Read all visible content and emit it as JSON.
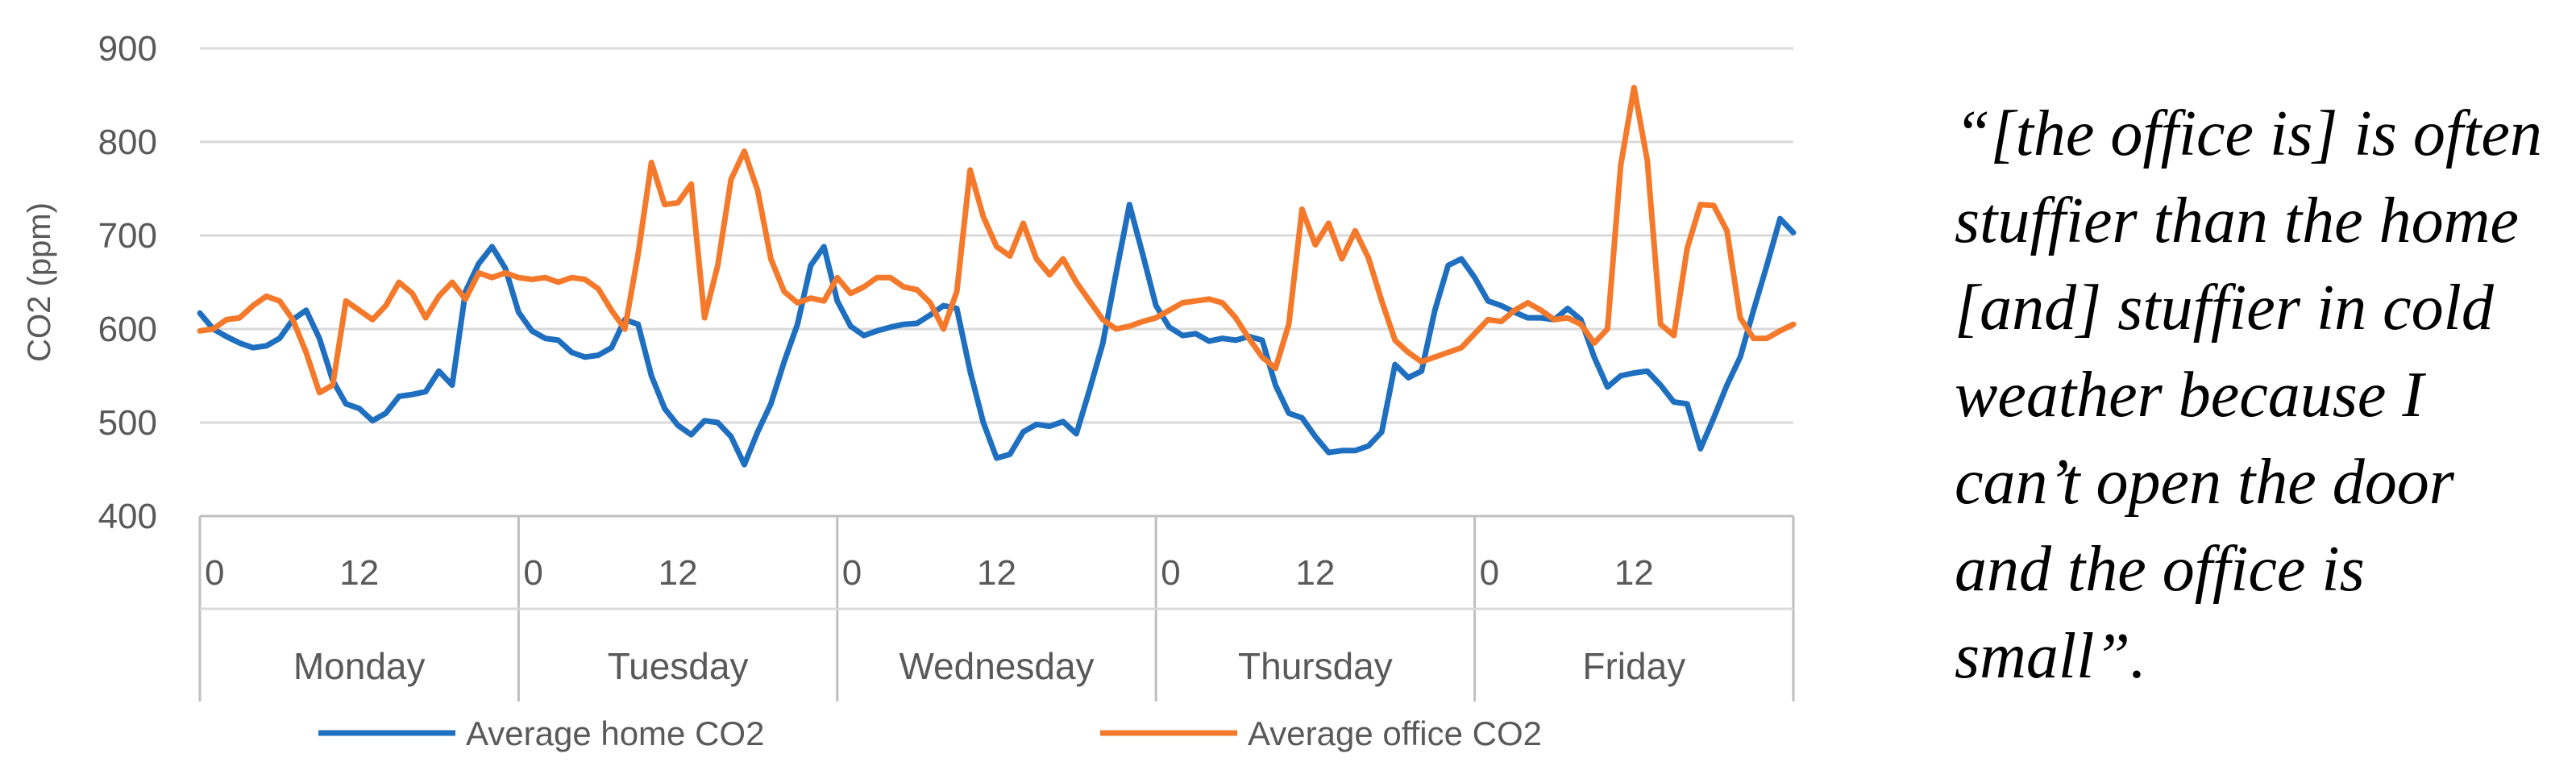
{
  "chart_data": {
    "type": "line",
    "title": "",
    "xlabel": "",
    "ylabel": "CO2 (ppm)",
    "ylim": [
      400,
      900
    ],
    "yticks": [
      400,
      500,
      600,
      700,
      800,
      900
    ],
    "grid": true,
    "legend_position": "bottom",
    "days": [
      "Monday",
      "Tuesday",
      "Wednesday",
      "Thursday",
      "Friday"
    ],
    "hour_ticks": [
      "0",
      "12"
    ],
    "points_per_day": 24,
    "series": [
      {
        "name": "Average home CO2",
        "color": "#1f6fc0",
        "values": [
          617,
          600,
          592,
          585,
          580,
          582,
          590,
          610,
          620,
          590,
          545,
          520,
          515,
          502,
          510,
          528,
          530,
          533,
          555,
          540,
          640,
          670,
          688,
          665,
          618,
          598,
          590,
          588,
          575,
          570,
          572,
          580,
          610,
          605,
          550,
          515,
          497,
          487,
          502,
          500,
          485,
          455,
          490,
          520,
          565,
          605,
          668,
          688,
          630,
          603,
          593,
          598,
          602,
          605,
          606,
          615,
          625,
          622,
          555,
          500,
          462,
          466,
          490,
          498,
          496,
          501,
          488,
          535,
          585,
          660,
          733,
          680,
          625,
          602,
          593,
          595,
          587,
          590,
          588,
          592,
          588,
          540,
          510,
          505,
          485,
          468,
          470,
          470,
          475,
          490,
          562,
          548,
          555,
          620,
          668,
          675,
          655,
          630,
          625,
          618,
          612,
          612,
          610,
          622,
          610,
          570,
          538,
          550,
          553,
          555,
          540,
          522,
          520,
          472,
          505,
          540,
          570,
          620,
          668,
          718,
          703
        ]
      },
      {
        "name": "Average office CO2",
        "color": "#f4792a",
        "values": [
          598,
          600,
          610,
          612,
          625,
          635,
          630,
          610,
          575,
          532,
          540,
          630,
          620,
          610,
          625,
          650,
          638,
          612,
          635,
          650,
          632,
          660,
          655,
          660,
          655,
          653,
          655,
          650,
          655,
          653,
          643,
          620,
          600,
          680,
          778,
          733,
          735,
          755,
          612,
          668,
          760,
          790,
          748,
          675,
          640,
          628,
          633,
          630,
          655,
          638,
          645,
          655,
          655,
          645,
          642,
          628,
          600,
          640,
          770,
          720,
          688,
          678,
          713,
          675,
          658,
          675,
          650,
          630,
          610,
          600,
          603,
          608,
          612,
          620,
          628,
          630,
          632,
          628,
          612,
          590,
          570,
          558,
          605,
          728,
          690,
          713,
          675,
          705,
          676,
          630,
          588,
          575,
          565,
          570,
          575,
          580,
          595,
          610,
          608,
          620,
          628,
          620,
          610,
          612,
          605,
          585,
          600,
          775,
          858,
          780,
          605,
          593,
          686,
          733,
          732,
          705,
          612,
          590,
          590,
          598,
          605
        ]
      }
    ]
  },
  "quote": {
    "text": "“[the office is] is often\nstuffier than the home\n[and] stuffier in cold\nweather because I\ncan’t open the door\nand the office is\nsmall”."
  }
}
